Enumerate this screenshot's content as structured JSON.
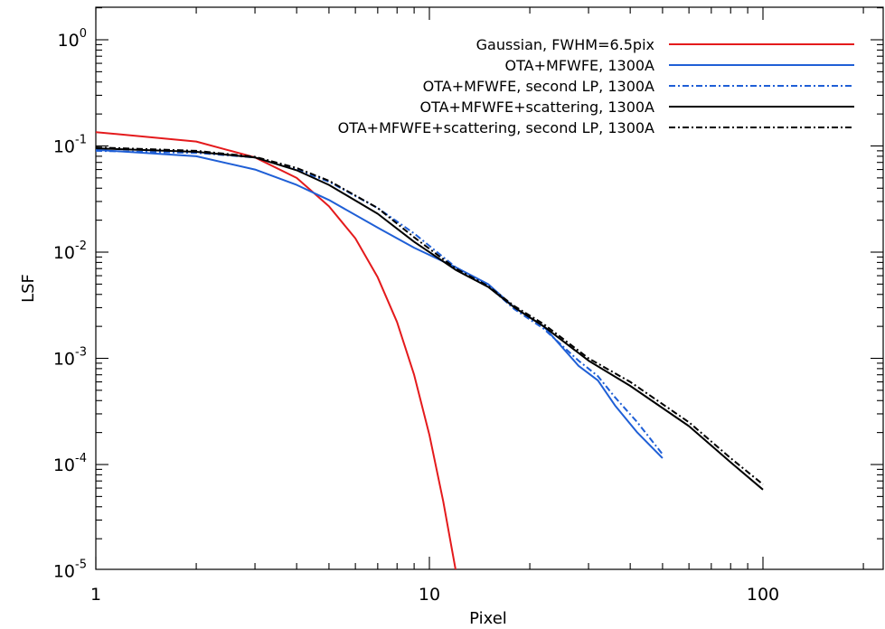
{
  "chart_data": {
    "type": "line",
    "xscale": "log",
    "yscale": "log",
    "xlabel": "Pixel",
    "ylabel": "LSF",
    "xlim": [
      1,
      200
    ],
    "ylim": [
      1e-05,
      2
    ],
    "x_ticks": [
      {
        "value": 1,
        "label": "1"
      },
      {
        "value": 10,
        "label": "10"
      },
      {
        "value": 100,
        "label": "100"
      }
    ],
    "y_ticks": [
      {
        "value": 1,
        "base": "10",
        "exp": "0"
      },
      {
        "value": 0.1,
        "base": "10",
        "exp": "-1"
      },
      {
        "value": 0.01,
        "base": "10",
        "exp": "-2"
      },
      {
        "value": 0.001,
        "base": "10",
        "exp": "-3"
      },
      {
        "value": 0.0001,
        "base": "10",
        "exp": "-4"
      },
      {
        "value": 1e-05,
        "base": "10",
        "exp": "-5"
      }
    ],
    "legend_position": "top-right",
    "series": [
      {
        "name": "Gaussian, FWHM=6.5pix",
        "color": "#e41a1c",
        "dash": "solid",
        "points": [
          [
            1,
            0.135
          ],
          [
            2,
            0.11
          ],
          [
            3,
            0.078
          ],
          [
            4,
            0.05
          ],
          [
            5,
            0.027
          ],
          [
            6,
            0.0135
          ],
          [
            7,
            0.0058
          ],
          [
            8,
            0.0022
          ],
          [
            9,
            0.0007
          ],
          [
            10,
            0.00019
          ],
          [
            11,
            4.5e-05
          ],
          [
            12,
            1e-05
          ]
        ]
      },
      {
        "name": "OTA+MFWFE, 1300A",
        "color": "#1f5fd6",
        "dash": "solid",
        "points": [
          [
            1,
            0.092
          ],
          [
            2,
            0.08
          ],
          [
            3,
            0.06
          ],
          [
            4,
            0.043
          ],
          [
            5,
            0.031
          ],
          [
            7,
            0.017
          ],
          [
            9,
            0.011
          ],
          [
            12,
            0.0072
          ],
          [
            15,
            0.005
          ],
          [
            18,
            0.003
          ],
          [
            22,
            0.002
          ],
          [
            28,
            0.00085
          ],
          [
            32,
            0.00062
          ],
          [
            36,
            0.00036
          ],
          [
            42,
            0.0002
          ],
          [
            50,
            0.000115
          ]
        ]
      },
      {
        "name": "OTA+MFWFE, second LP, 1300A",
        "color": "#1f5fd6",
        "dash": "dashdot",
        "points": [
          [
            1,
            0.09
          ],
          [
            2,
            0.086
          ],
          [
            3,
            0.078
          ],
          [
            4,
            0.06
          ],
          [
            5,
            0.046
          ],
          [
            7,
            0.026
          ],
          [
            9,
            0.015
          ],
          [
            12,
            0.0072
          ],
          [
            15,
            0.0048
          ],
          [
            18,
            0.0029
          ],
          [
            22,
            0.0019
          ],
          [
            28,
            0.00095
          ],
          [
            32,
            0.00068
          ],
          [
            36,
            0.00043
          ],
          [
            42,
            0.00025
          ],
          [
            50,
            0.000125
          ]
        ]
      },
      {
        "name": "OTA+MFWFE+scattering, 1300A",
        "color": "#000000",
        "dash": "solid",
        "points": [
          [
            1,
            0.095
          ],
          [
            2,
            0.088
          ],
          [
            3,
            0.078
          ],
          [
            4,
            0.059
          ],
          [
            5,
            0.043
          ],
          [
            7,
            0.023
          ],
          [
            9,
            0.0125
          ],
          [
            12,
            0.0068
          ],
          [
            15,
            0.0047
          ],
          [
            18,
            0.003
          ],
          [
            22,
            0.002
          ],
          [
            30,
            0.00095
          ],
          [
            40,
            0.00055
          ],
          [
            60,
            0.00023
          ],
          [
            80,
            0.000105
          ],
          [
            100,
            5.8e-05
          ]
        ]
      },
      {
        "name": "OTA+MFWFE+scattering, second LP, 1300A",
        "color": "#000000",
        "dash": "dashdot",
        "points": [
          [
            1,
            0.097
          ],
          [
            2,
            0.09
          ],
          [
            3,
            0.079
          ],
          [
            4,
            0.062
          ],
          [
            5,
            0.047
          ],
          [
            7,
            0.026
          ],
          [
            9,
            0.0138
          ],
          [
            12,
            0.007
          ],
          [
            15,
            0.0048
          ],
          [
            18,
            0.0031
          ],
          [
            22,
            0.0021
          ],
          [
            30,
            0.001
          ],
          [
            40,
            0.0006
          ],
          [
            60,
            0.00025
          ],
          [
            80,
            0.000115
          ],
          [
            100,
            6.5e-05
          ]
        ]
      }
    ]
  }
}
